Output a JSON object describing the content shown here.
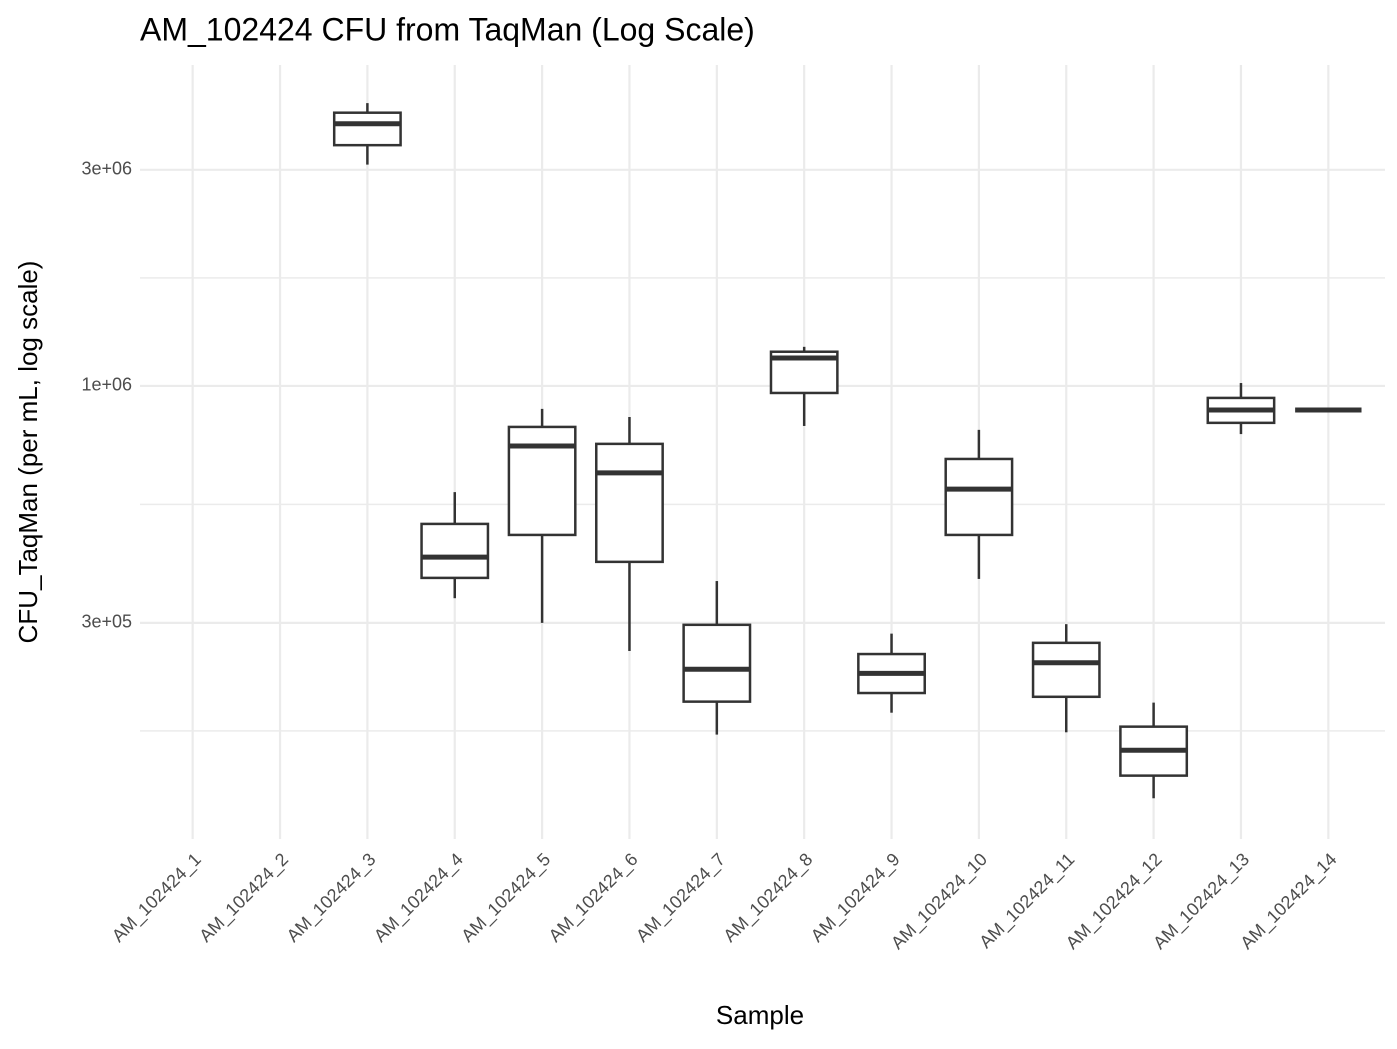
{
  "chart_data": {
    "type": "box",
    "title": "AM_102424 CFU from TaqMan (Log Scale)",
    "x_label": "Sample",
    "y_label": "CFU_TaqMan (per mL, log scale)",
    "categories": [
      "AM_102424_1",
      "AM_102424_2",
      "AM_102424_3",
      "AM_102424_4",
      "AM_102424_5",
      "AM_102424_6",
      "AM_102424_7",
      "AM_102424_8",
      "AM_102424_9",
      "AM_102424_10",
      "AM_102424_11",
      "AM_102424_12",
      "AM_102424_13",
      "AM_102424_14"
    ],
    "boxes": [
      null,
      null,
      {
        "low": 3080000,
        "q1": 3400000,
        "median": 3790000,
        "q3": 4010000,
        "high": 4210000
      },
      {
        "low": 340000,
        "q1": 377000,
        "median": 419000,
        "q3": 496000,
        "high": 583000
      },
      {
        "low": 300000,
        "q1": 469000,
        "median": 737000,
        "q3": 812000,
        "high": 890000
      },
      {
        "low": 260000,
        "q1": 409000,
        "median": 643000,
        "q3": 745000,
        "high": 854000
      },
      {
        "low": 170000,
        "q1": 201000,
        "median": 237000,
        "q3": 297000,
        "high": 371000
      },
      {
        "low": 816000,
        "q1": 965000,
        "median": 1153000,
        "q3": 1190000,
        "high": 1220000
      },
      {
        "low": 190000,
        "q1": 210000,
        "median": 232000,
        "q3": 256000,
        "high": 284000
      },
      {
        "low": 375000,
        "q1": 469000,
        "median": 592000,
        "q3": 690000,
        "high": 800000
      },
      {
        "low": 172000,
        "q1": 206000,
        "median": 245000,
        "q3": 271000,
        "high": 298000
      },
      {
        "low": 123000,
        "q1": 138000,
        "median": 157000,
        "q3": 177000,
        "high": 200000
      },
      {
        "low": 783000,
        "q1": 829000,
        "median": 885000,
        "q3": 941000,
        "high": 1015000
      },
      {
        "low": 885000,
        "q1": 885000,
        "median": 885000,
        "q3": 885000,
        "high": 885000
      }
    ],
    "color": "#333333",
    "log_scale": true,
    "grid": true,
    "ylim": [
      100000,
      5110000
    ],
    "yticks": [
      {
        "value": 300000,
        "label": "3e+05"
      },
      {
        "value": 1000000,
        "label": "1e+06"
      },
      {
        "value": 3000000,
        "label": "3e+06"
      }
    ],
    "minor_yticks": [
      173205,
      547723,
      1732051
    ]
  }
}
